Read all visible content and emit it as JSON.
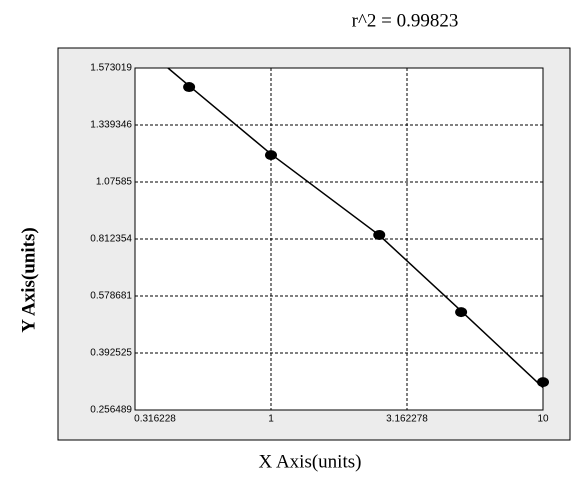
{
  "chart_data": {
    "type": "scatter",
    "title": "r^2  =  0.99823",
    "x_label": "X Axis(units)",
    "y_label": "Y Axis(units)",
    "x_scale": "log",
    "xlim": [
      0.316228,
      10
    ],
    "xticks": [
      0.316228,
      1,
      3.162278,
      10
    ],
    "ylim": [
      0.256489,
      1.573019
    ],
    "yticks": [
      0.256489,
      0.392525,
      0.578681,
      0.812354,
      1.07585,
      1.339346,
      1.573019
    ],
    "grid": true,
    "x": [
      0.5,
      1,
      2.5,
      5,
      10
    ],
    "values": [
      1.495,
      1.2,
      0.831,
      0.526,
      0.323
    ],
    "color": "#000000",
    "fit_line": {
      "x": [
        0.418,
        0.5,
        1,
        2.5,
        5,
        10
      ],
      "values": [
        1.573,
        1.5,
        1.205,
        0.83,
        0.53,
        0.31
      ]
    }
  }
}
